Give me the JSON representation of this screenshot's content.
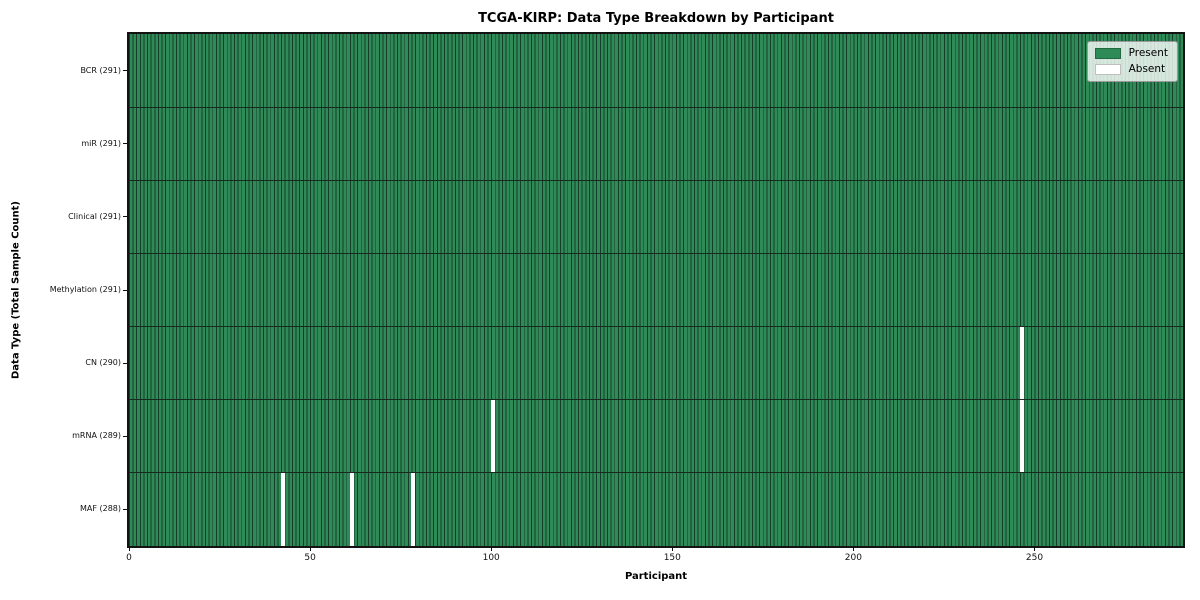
{
  "chart_data": {
    "type": "heatmap",
    "title": "TCGA-KIRP: Data Type Breakdown by Participant",
    "xlabel": "Participant",
    "ylabel": "Data Type (Total Sample Count)",
    "x_ticks": [
      0,
      50,
      100,
      150,
      200,
      250
    ],
    "x_range": [
      0,
      291
    ],
    "total_participants": 291,
    "grid": false,
    "legend_position": "upper right",
    "legend": [
      {
        "label": "Present",
        "color": "#2e8b57"
      },
      {
        "label": "Absent",
        "color": "#ffffff"
      }
    ],
    "rows": [
      {
        "label": "BCR (291)",
        "data_type": "BCR",
        "present_count": 291,
        "absent_participants": []
      },
      {
        "label": "miR (291)",
        "data_type": "miR",
        "present_count": 291,
        "absent_participants": []
      },
      {
        "label": "Clinical (291)",
        "data_type": "Clinical",
        "present_count": 291,
        "absent_participants": []
      },
      {
        "label": "Methylation (291)",
        "data_type": "Methylation",
        "present_count": 291,
        "absent_participants": []
      },
      {
        "label": "CN (290)",
        "data_type": "CN",
        "present_count": 290,
        "absent_participants": [
          246
        ]
      },
      {
        "label": "mRNA (289)",
        "data_type": "mRNA",
        "present_count": 289,
        "absent_participants": [
          100,
          246
        ]
      },
      {
        "label": "MAF (288)",
        "data_type": "MAF",
        "present_count": 288,
        "absent_participants": [
          42,
          61,
          78
        ]
      }
    ],
    "colors": {
      "present": "#2e8b57",
      "absent": "#ffffff",
      "bar_edge": "#163d2a",
      "axis": "#131313"
    }
  }
}
